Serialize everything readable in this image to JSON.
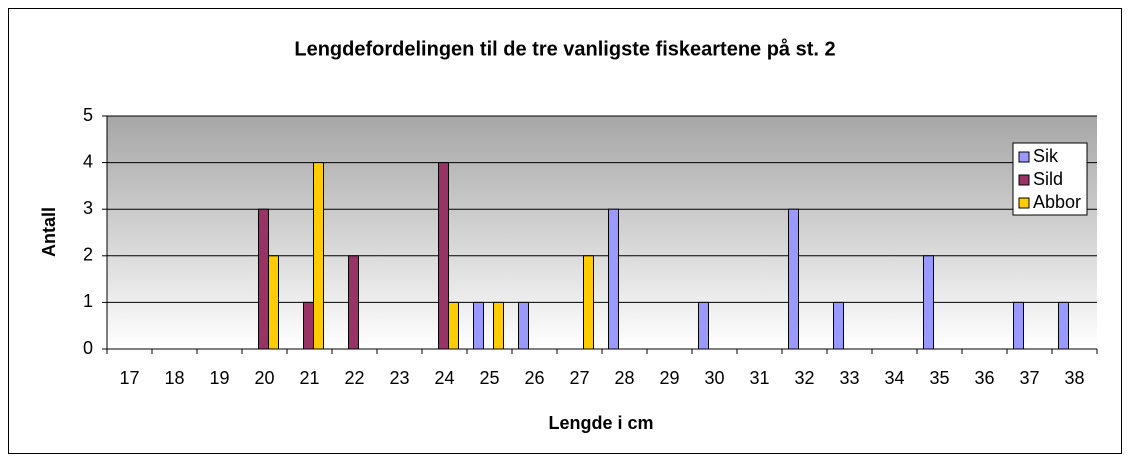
{
  "chart_data": {
    "type": "bar",
    "title": "Lengdefordelingen til de tre vanligste fiskeartene på st. 2",
    "x_label": "Lengde i cm",
    "y_label": "Antall",
    "categories": [
      "17",
      "18",
      "19",
      "20",
      "21",
      "22",
      "23",
      "24",
      "25",
      "26",
      "27",
      "28",
      "29",
      "30",
      "31",
      "32",
      "33",
      "34",
      "35",
      "36",
      "37",
      "38"
    ],
    "series": [
      {
        "name": "Sik",
        "color": "#9999ff",
        "values": [
          0,
          0,
          0,
          0,
          0,
          0,
          0,
          0,
          1,
          1,
          0,
          3,
          0,
          1,
          0,
          3,
          1,
          0,
          2,
          0,
          1,
          1
        ]
      },
      {
        "name": "Sild",
        "color": "#993366",
        "values": [
          0,
          0,
          0,
          3,
          1,
          2,
          0,
          4,
          0,
          0,
          0,
          0,
          0,
          0,
          0,
          0,
          0,
          0,
          0,
          0,
          0,
          0
        ]
      },
      {
        "name": "Abbor",
        "color": "#ffcc00",
        "values": [
          0,
          0,
          0,
          2,
          4,
          0,
          0,
          1,
          1,
          0,
          2,
          0,
          0,
          0,
          0,
          0,
          0,
          0,
          0,
          0,
          0,
          0
        ]
      }
    ],
    "ylim": [
      0,
      5
    ],
    "yticks": [
      0,
      1,
      2,
      3,
      4,
      5
    ],
    "grid": true,
    "legend": "right"
  }
}
